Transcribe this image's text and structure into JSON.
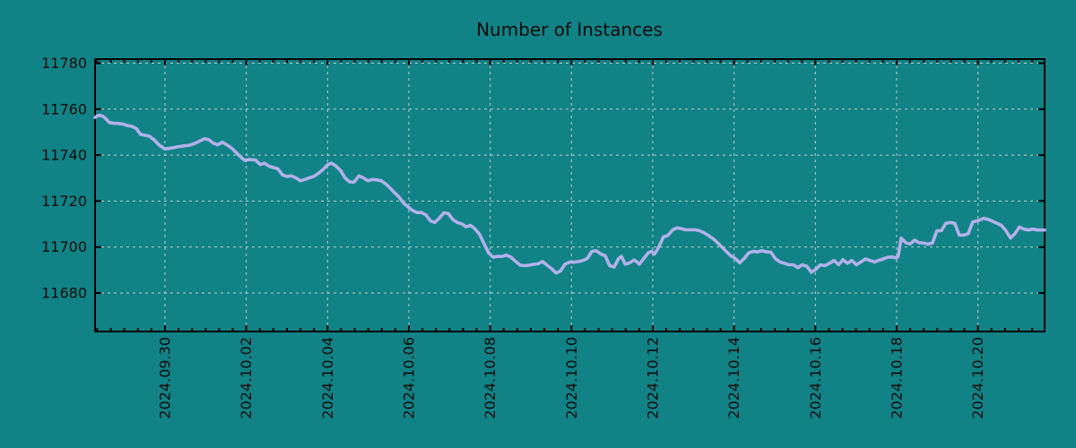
{
  "chart_data": {
    "type": "line",
    "title": "Number of Instances",
    "xlabel": "",
    "ylabel": "",
    "legend": "none",
    "grid": "dashed",
    "background_color": "#118285",
    "line_color": "#b2b0eb",
    "grid_color": "#c3cdcd",
    "axis_color": "#000000",
    "y_ticks": [
      11680,
      11700,
      11720,
      11740,
      11760,
      11780
    ],
    "y_tick_labels": [
      "11680",
      "11700",
      "11720",
      "11740",
      "11760",
      "11780"
    ],
    "ylim": [
      11663,
      11782
    ],
    "x_ticks": [
      {
        "t": 0,
        "label": "2024.09.30"
      },
      {
        "t": 2,
        "label": "2024.10.02"
      },
      {
        "t": 4,
        "label": "2024.10.04"
      },
      {
        "t": 6,
        "label": "2024.10.06"
      },
      {
        "t": 8,
        "label": "2024.10.08"
      },
      {
        "t": 10,
        "label": "2024.10.10"
      },
      {
        "t": 12,
        "label": "2024.10.12"
      },
      {
        "t": 14,
        "label": "2024.10.14"
      },
      {
        "t": 16,
        "label": "2024.10.16"
      },
      {
        "t": 18,
        "label": "2024.10.18"
      },
      {
        "t": 20,
        "label": "2024.10.20"
      }
    ],
    "xlim_days": [
      -1.72,
      21.64
    ],
    "x_minor_ticks_per_day": 3,
    "x_unit": "days relative to 2024-09-30",
    "points": [
      [
        -1.72,
        11756.4
      ],
      [
        -1.65,
        11757.2
      ],
      [
        -1.59,
        11757.3
      ],
      [
        -1.52,
        11756.8
      ],
      [
        -1.46,
        11755.9
      ],
      [
        -1.37,
        11754.2
      ],
      [
        -1.26,
        11753.8
      ],
      [
        -1.15,
        11753.8
      ],
      [
        -1.04,
        11753.5
      ],
      [
        -0.93,
        11752.9
      ],
      [
        -0.82,
        11752.5
      ],
      [
        -0.71,
        11751.6
      ],
      [
        -0.6,
        11749.0
      ],
      [
        -0.49,
        11748.6
      ],
      [
        -0.38,
        11748.2
      ],
      [
        -0.26,
        11746.5
      ],
      [
        -0.15,
        11744.5
      ],
      [
        0.0,
        11742.6
      ],
      [
        0.09,
        11742.9
      ],
      [
        0.2,
        11743.2
      ],
      [
        0.31,
        11743.6
      ],
      [
        0.42,
        11743.9
      ],
      [
        0.53,
        11744.1
      ],
      [
        0.64,
        11744.5
      ],
      [
        0.75,
        11745.2
      ],
      [
        0.86,
        11746.2
      ],
      [
        0.97,
        11747.1
      ],
      [
        1.08,
        11746.7
      ],
      [
        1.19,
        11745.2
      ],
      [
        1.3,
        11744.5
      ],
      [
        1.41,
        11745.6
      ],
      [
        1.52,
        11744.5
      ],
      [
        1.63,
        11743.2
      ],
      [
        1.74,
        11741.3
      ],
      [
        1.85,
        11739.4
      ],
      [
        1.96,
        11737.7
      ],
      [
        2.07,
        11738.1
      ],
      [
        2.23,
        11737.8
      ],
      [
        2.34,
        11735.9
      ],
      [
        2.45,
        11736.5
      ],
      [
        2.56,
        11735.2
      ],
      [
        2.67,
        11734.6
      ],
      [
        2.78,
        11734.0
      ],
      [
        2.89,
        11731.4
      ],
      [
        3.0,
        11730.7
      ],
      [
        3.11,
        11731.0
      ],
      [
        3.22,
        11730.1
      ],
      [
        3.33,
        11728.8
      ],
      [
        3.44,
        11729.4
      ],
      [
        3.55,
        11730.1
      ],
      [
        3.66,
        11730.7
      ],
      [
        3.77,
        11732.0
      ],
      [
        3.88,
        11733.6
      ],
      [
        4.01,
        11735.9
      ],
      [
        4.1,
        11736.5
      ],
      [
        4.21,
        11735.2
      ],
      [
        4.32,
        11733.3
      ],
      [
        4.43,
        11730.1
      ],
      [
        4.54,
        11728.4
      ],
      [
        4.65,
        11728.2
      ],
      [
        4.77,
        11731.0
      ],
      [
        4.88,
        11730.1
      ],
      [
        4.99,
        11728.8
      ],
      [
        5.1,
        11729.4
      ],
      [
        5.21,
        11729.2
      ],
      [
        5.32,
        11728.8
      ],
      [
        5.43,
        11727.5
      ],
      [
        5.54,
        11725.6
      ],
      [
        5.65,
        11723.6
      ],
      [
        5.76,
        11721.7
      ],
      [
        5.87,
        11719.1
      ],
      [
        6.0,
        11717.2
      ],
      [
        6.09,
        11715.9
      ],
      [
        6.2,
        11715.0
      ],
      [
        6.31,
        11715.0
      ],
      [
        6.42,
        11714.0
      ],
      [
        6.53,
        11711.4
      ],
      [
        6.64,
        11710.7
      ],
      [
        6.75,
        11712.6
      ],
      [
        6.86,
        11714.9
      ],
      [
        6.97,
        11714.6
      ],
      [
        7.08,
        11712.0
      ],
      [
        7.19,
        11710.7
      ],
      [
        7.3,
        11710.1
      ],
      [
        7.41,
        11708.8
      ],
      [
        7.52,
        11709.4
      ],
      [
        7.63,
        11707.8
      ],
      [
        7.74,
        11705.5
      ],
      [
        7.85,
        11701.5
      ],
      [
        7.96,
        11697.5
      ],
      [
        8.07,
        11695.6
      ],
      [
        8.18,
        11695.9
      ],
      [
        8.29,
        11695.9
      ],
      [
        8.4,
        11696.5
      ],
      [
        8.51,
        11695.6
      ],
      [
        8.63,
        11693.7
      ],
      [
        8.74,
        11692.1
      ],
      [
        8.85,
        11691.9
      ],
      [
        8.96,
        11692.1
      ],
      [
        9.07,
        11692.5
      ],
      [
        9.18,
        11692.7
      ],
      [
        9.29,
        11693.7
      ],
      [
        9.4,
        11692.1
      ],
      [
        9.51,
        11690.6
      ],
      [
        9.62,
        11688.7
      ],
      [
        9.73,
        11689.6
      ],
      [
        9.84,
        11692.5
      ],
      [
        9.95,
        11693.4
      ],
      [
        10.06,
        11693.4
      ],
      [
        10.17,
        11693.7
      ],
      [
        10.28,
        11694.1
      ],
      [
        10.39,
        11695.0
      ],
      [
        10.5,
        11698.1
      ],
      [
        10.61,
        11698.4
      ],
      [
        10.72,
        11697.0
      ],
      [
        10.83,
        11696.2
      ],
      [
        10.94,
        11691.9
      ],
      [
        11.05,
        11691.3
      ],
      [
        11.16,
        11695.0
      ],
      [
        11.23,
        11695.9
      ],
      [
        11.32,
        11692.5
      ],
      [
        11.43,
        11693.1
      ],
      [
        11.54,
        11694.4
      ],
      [
        11.6,
        11693.7
      ],
      [
        11.67,
        11692.5
      ],
      [
        11.78,
        11695.0
      ],
      [
        11.89,
        11697.5
      ],
      [
        11.98,
        11698.1
      ],
      [
        12.04,
        11696.9
      ],
      [
        12.11,
        11698.8
      ],
      [
        12.2,
        11701.9
      ],
      [
        12.26,
        11704.4
      ],
      [
        12.37,
        11705.0
      ],
      [
        12.49,
        11707.5
      ],
      [
        12.6,
        11708.4
      ],
      [
        12.71,
        11707.9
      ],
      [
        12.82,
        11707.5
      ],
      [
        12.93,
        11707.5
      ],
      [
        13.04,
        11707.5
      ],
      [
        13.15,
        11707.1
      ],
      [
        13.26,
        11706.2
      ],
      [
        13.37,
        11705.0
      ],
      [
        13.48,
        11703.7
      ],
      [
        13.59,
        11701.9
      ],
      [
        13.7,
        11700.0
      ],
      [
        13.81,
        11698.1
      ],
      [
        13.92,
        11696.2
      ],
      [
        14.03,
        11695.0
      ],
      [
        14.14,
        11693.1
      ],
      [
        14.25,
        11695.0
      ],
      [
        14.36,
        11697.5
      ],
      [
        14.47,
        11698.1
      ],
      [
        14.58,
        11697.9
      ],
      [
        14.69,
        11698.4
      ],
      [
        14.8,
        11697.9
      ],
      [
        14.91,
        11697.7
      ],
      [
        15.02,
        11694.8
      ],
      [
        15.13,
        11693.5
      ],
      [
        15.24,
        11692.9
      ],
      [
        15.35,
        11692.3
      ],
      [
        15.46,
        11692.3
      ],
      [
        15.57,
        11691.0
      ],
      [
        15.68,
        11692.3
      ],
      [
        15.79,
        11691.6
      ],
      [
        15.9,
        11689.0
      ],
      [
        16.01,
        11690.3
      ],
      [
        16.12,
        11692.3
      ],
      [
        16.23,
        11691.9
      ],
      [
        16.35,
        11692.9
      ],
      [
        16.46,
        11694.2
      ],
      [
        16.57,
        11692.3
      ],
      [
        16.68,
        11694.5
      ],
      [
        16.79,
        11692.9
      ],
      [
        16.9,
        11694.2
      ],
      [
        17.01,
        11692.3
      ],
      [
        17.12,
        11693.5
      ],
      [
        17.23,
        11694.8
      ],
      [
        17.34,
        11694.2
      ],
      [
        17.45,
        11693.5
      ],
      [
        17.56,
        11694.2
      ],
      [
        17.67,
        11694.8
      ],
      [
        17.78,
        11695.5
      ],
      [
        17.89,
        11695.7
      ],
      [
        18.0,
        11695.2
      ],
      [
        18.04,
        11696.1
      ],
      [
        18.11,
        11703.9
      ],
      [
        18.22,
        11701.9
      ],
      [
        18.33,
        11701.3
      ],
      [
        18.44,
        11703.0
      ],
      [
        18.55,
        11701.9
      ],
      [
        18.66,
        11701.7
      ],
      [
        18.77,
        11701.3
      ],
      [
        18.88,
        11701.7
      ],
      [
        18.99,
        11707.1
      ],
      [
        19.1,
        11707.1
      ],
      [
        19.21,
        11710.3
      ],
      [
        19.32,
        11710.7
      ],
      [
        19.43,
        11710.3
      ],
      [
        19.54,
        11705.2
      ],
      [
        19.65,
        11705.2
      ],
      [
        19.76,
        11705.8
      ],
      [
        19.87,
        11710.9
      ],
      [
        20.03,
        11711.6
      ],
      [
        20.14,
        11712.5
      ],
      [
        20.25,
        11712.0
      ],
      [
        20.36,
        11711.2
      ],
      [
        20.47,
        11710.3
      ],
      [
        20.58,
        11709.4
      ],
      [
        20.69,
        11707.1
      ],
      [
        20.8,
        11703.9
      ],
      [
        20.91,
        11705.8
      ],
      [
        21.02,
        11708.7
      ],
      [
        21.13,
        11707.8
      ],
      [
        21.24,
        11707.4
      ],
      [
        21.35,
        11707.8
      ],
      [
        21.46,
        11707.4
      ],
      [
        21.57,
        11707.4
      ],
      [
        21.64,
        11707.4
      ]
    ]
  }
}
